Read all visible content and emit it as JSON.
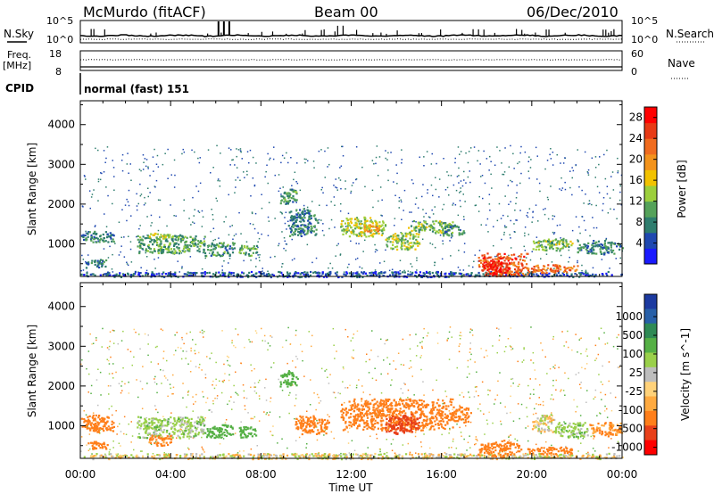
{
  "header": {
    "station": "McMurdo (fitACF)",
    "beam": "Beam 00",
    "date": "06/Dec/2010"
  },
  "side_labels": {
    "nsky": "N.Sky",
    "nsearch": "N.Search",
    "freq": "Freq.",
    "mhz": "[MHz]",
    "nave": "Nave",
    "cpid": "CPID",
    "cpid_value": "normal (fast) 151"
  },
  "noise_axis": {
    "left_top": "10^5",
    "left_bottom": "10^0",
    "right_top": "10^5",
    "right_bottom": "10^0"
  },
  "freq_axis": {
    "left_top": "18",
    "left_bottom": "8",
    "right_top": "60",
    "right_bottom": "0"
  },
  "colors": {
    "power_scale": [
      "#1a1aff",
      "#1f48b0",
      "#2e7d6e",
      "#55a25a",
      "#9ccf3c",
      "#f2c200",
      "#f3931c",
      "#f06c1f",
      "#e83a15",
      "#ff0000"
    ],
    "velocity_scale": [
      "#ff0000",
      "#e8401a",
      "#ff7f1a",
      "#ffaa40",
      "#ffd27a",
      "#bdbdbd",
      "#9ad04a",
      "#55b045",
      "#2f8a55",
      "#2860a8",
      "#1c3aa0"
    ]
  },
  "chart_data": [
    {
      "type": "heatmap",
      "name": "power",
      "ylabel": "Slant Range [km]",
      "ylim": [
        180,
        4600
      ],
      "yticks": [
        "1000",
        "2000",
        "3000",
        "4000"
      ],
      "xlim": [
        0,
        24
      ],
      "xticks": [
        "00:00",
        "04:00",
        "08:00",
        "12:00",
        "16:00",
        "20:00",
        "00:00"
      ],
      "colorbar_label": "Power [dB]",
      "colorbar_ticks": [
        "4",
        "8",
        "12",
        "16",
        "20",
        "24",
        "28"
      ],
      "colorbar_range": [
        0,
        30
      ],
      "regions": [
        {
          "t0": 0.0,
          "t1": 24.0,
          "r0": 180,
          "r1": 320,
          "value": 5
        },
        {
          "t0": 0.0,
          "t1": 1.5,
          "r0": 1050,
          "r1": 1350,
          "value": 8
        },
        {
          "t0": 0.2,
          "t1": 1.2,
          "r0": 420,
          "r1": 620,
          "value": 7
        },
        {
          "t0": 2.5,
          "t1": 5.5,
          "r0": 780,
          "r1": 1250,
          "value": 10
        },
        {
          "t0": 3.0,
          "t1": 4.0,
          "r0": 1150,
          "r1": 1300,
          "value": 14
        },
        {
          "t0": 5.5,
          "t1": 6.8,
          "r0": 700,
          "r1": 1050,
          "value": 9
        },
        {
          "t0": 7.0,
          "t1": 7.8,
          "r0": 700,
          "r1": 1000,
          "value": 11
        },
        {
          "t0": 8.8,
          "t1": 9.6,
          "r0": 2000,
          "r1": 2400,
          "value": 9
        },
        {
          "t0": 9.2,
          "t1": 10.5,
          "r0": 1200,
          "r1": 1900,
          "value": 8
        },
        {
          "t0": 11.5,
          "t1": 13.5,
          "r0": 1200,
          "r1": 1700,
          "value": 14
        },
        {
          "t0": 12.5,
          "t1": 13.2,
          "r0": 1300,
          "r1": 1500,
          "value": 18
        },
        {
          "t0": 13.5,
          "t1": 15.0,
          "r0": 850,
          "r1": 1300,
          "value": 13
        },
        {
          "t0": 14.5,
          "t1": 16.5,
          "r0": 1300,
          "r1": 1600,
          "value": 12
        },
        {
          "t0": 16.0,
          "t1": 17.0,
          "r0": 1200,
          "r1": 1500,
          "value": 9
        },
        {
          "t0": 17.6,
          "t1": 19.8,
          "r0": 200,
          "r1": 780,
          "value": 24
        },
        {
          "t0": 17.8,
          "t1": 19.0,
          "r0": 250,
          "r1": 600,
          "value": 28
        },
        {
          "t0": 19.8,
          "t1": 22.0,
          "r0": 280,
          "r1": 500,
          "value": 22
        },
        {
          "t0": 20.0,
          "t1": 21.8,
          "r0": 850,
          "r1": 1150,
          "value": 12
        },
        {
          "t0": 22.0,
          "t1": 24.0,
          "r0": 750,
          "r1": 1100,
          "value": 8
        }
      ]
    },
    {
      "type": "heatmap",
      "name": "velocity",
      "ylabel": "Slant Range [km]",
      "ylim": [
        180,
        4600
      ],
      "yticks": [
        "1000",
        "2000",
        "3000",
        "4000"
      ],
      "xlim": [
        0,
        24
      ],
      "xticks": [
        "00:00",
        "04:00",
        "08:00",
        "12:00",
        "16:00",
        "20:00",
        "00:00"
      ],
      "xlabel": "Time UT",
      "colorbar_label": "Velocity [m s^-1]",
      "colorbar_ticks": [
        "1000",
        "500",
        "100",
        "25",
        "-25",
        "-100",
        "-500",
        "-1000"
      ],
      "regions": [
        {
          "t0": 0.0,
          "t1": 24.0,
          "r0": 180,
          "r1": 320,
          "value": 0
        },
        {
          "t0": 0.0,
          "t1": 1.5,
          "r0": 850,
          "r1": 1300,
          "value": -300
        },
        {
          "t0": 0.2,
          "t1": 1.2,
          "r0": 420,
          "r1": 620,
          "value": -400
        },
        {
          "t0": 2.5,
          "t1": 5.5,
          "r0": 700,
          "r1": 1250,
          "value": 60
        },
        {
          "t0": 3.0,
          "t1": 4.0,
          "r0": 500,
          "r1": 800,
          "value": -150
        },
        {
          "t0": 5.5,
          "t1": 6.8,
          "r0": 700,
          "r1": 1050,
          "value": 200
        },
        {
          "t0": 7.0,
          "t1": 7.8,
          "r0": 700,
          "r1": 1000,
          "value": 200
        },
        {
          "t0": 8.8,
          "t1": 9.6,
          "r0": 2000,
          "r1": 2400,
          "value": 200
        },
        {
          "t0": 9.5,
          "t1": 11.0,
          "r0": 800,
          "r1": 1300,
          "value": -200
        },
        {
          "t0": 11.5,
          "t1": 16.5,
          "r0": 900,
          "r1": 1700,
          "value": -400
        },
        {
          "t0": 13.5,
          "t1": 15.0,
          "r0": 800,
          "r1": 1300,
          "value": -600
        },
        {
          "t0": 16.5,
          "t1": 17.3,
          "r0": 1100,
          "r1": 1500,
          "value": -150
        },
        {
          "t0": 17.6,
          "t1": 19.5,
          "r0": 220,
          "r1": 650,
          "value": -400
        },
        {
          "t0": 19.8,
          "t1": 21.8,
          "r0": 300,
          "r1": 500,
          "value": -300
        },
        {
          "t0": 20.0,
          "t1": 21.0,
          "r0": 850,
          "r1": 1300,
          "value": 0
        },
        {
          "t0": 21.0,
          "t1": 22.5,
          "r0": 700,
          "r1": 1100,
          "value": 60
        },
        {
          "t0": 22.5,
          "t1": 24.0,
          "r0": 750,
          "r1": 1100,
          "value": -100
        }
      ]
    }
  ]
}
